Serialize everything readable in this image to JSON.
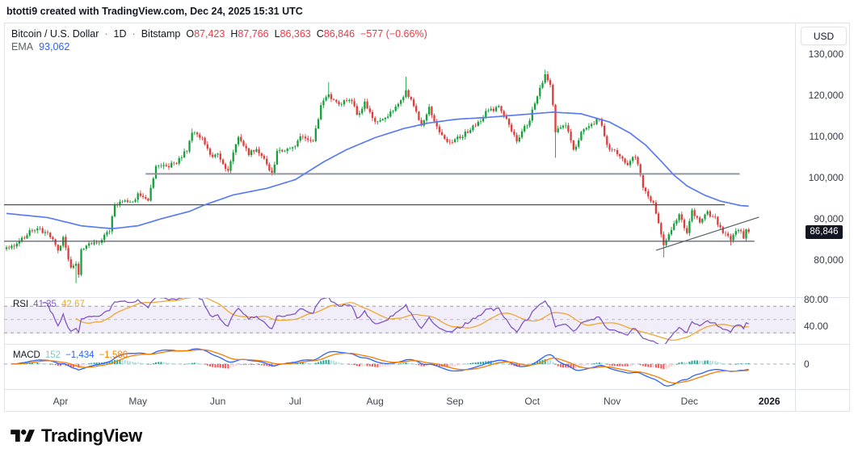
{
  "header": {
    "attribution": "btotti9 created with TradingView.com, Dec 24, 2025 15:31 UTC"
  },
  "symbol_legend": {
    "title": "Bitcoin / U.S. Dollar",
    "dot": "·",
    "interval": "1D",
    "exchange": "Bitstamp",
    "ohlc": [
      {
        "label": "O",
        "value": "87,423"
      },
      {
        "label": "H",
        "value": "87,766"
      },
      {
        "label": "L",
        "value": "86,363"
      },
      {
        "label": "C",
        "value": "86,846"
      }
    ],
    "change": "−577 (−0.66%)",
    "ema_label": "EMA",
    "ema_value": "93,062"
  },
  "price_axis": {
    "currency": "USD",
    "ticks": [
      {
        "price": 130000,
        "label": "130,000"
      },
      {
        "price": 120000,
        "label": "120,000"
      },
      {
        "price": 110000,
        "label": "110,000"
      },
      {
        "price": 100000,
        "label": "100,000"
      },
      {
        "price": 90000,
        "label": "90,000"
      },
      {
        "price": 80000,
        "label": "80,000"
      }
    ],
    "last_price": {
      "value": 86846,
      "label": "86,846"
    }
  },
  "rsi_pane": {
    "label": "RSI",
    "value": "41.35",
    "signal_value": "42.67",
    "scale_ticks": [
      {
        "v": 80,
        "label": "80.00"
      },
      {
        "v": 40,
        "label": "40.00"
      }
    ],
    "bands": {
      "upper": 70,
      "middle": 50,
      "lower": 30
    }
  },
  "macd_pane": {
    "label": "MACD",
    "hist_value": "152",
    "macd_value": "−1,434",
    "signal_value": "−1,586",
    "zero_label": "0"
  },
  "footer": {
    "brand": "TradingView"
  },
  "colors": {
    "up": "#16a03c",
    "down": "#e03c3c",
    "ema": "#5b7cf0",
    "hline_thick": "#9196a1",
    "hline_thin": "#4a4d55",
    "trendline": "#5a5e66",
    "rsi": "#7e57c2",
    "rsi_ma": "#f0a732",
    "rsi_band_fill": "rgba(126,87,194,0.10)",
    "band_line": "#9297a4",
    "macd_line": "#2962ff",
    "macd_signal": "#f57c00",
    "hist_up": "#26a69a",
    "hist_up_weak": "#b2dfdb",
    "hist_down": "#ff5252",
    "hist_down_weak": "#ffcdd2",
    "hist_value_color": "#80cbc4",
    "axis_text": "#363a45",
    "time_text": "#42464e",
    "year_text": "#131722",
    "border": "#e0e3eb",
    "badge_bg": "#131722",
    "badge_fg": "#ffffff",
    "legend_red": "#f23645"
  },
  "chart_data": {
    "type": "candlestick",
    "title": "Bitcoin / U.S. Dollar, 1D, Bitstamp",
    "start_date": "2025-03-11",
    "end_date": "2025-12-24",
    "days_total": 289,
    "ylim": [
      71000,
      137650
    ],
    "y_ticks": [
      80000,
      90000,
      100000,
      110000,
      120000,
      130000
    ],
    "last_candle": {
      "open": 87423,
      "high": 87766,
      "low": 86363,
      "close": 86846,
      "change": -577,
      "change_pct": -0.66
    },
    "close_waypoints": [
      [
        0,
        82800
      ],
      [
        4,
        84100
      ],
      [
        9,
        86800
      ],
      [
        13,
        87400
      ],
      [
        17,
        85700
      ],
      [
        20,
        82500
      ],
      [
        22,
        85100
      ],
      [
        25,
        78400
      ],
      [
        27,
        79200
      ],
      [
        28,
        76300
      ],
      [
        29,
        82600
      ],
      [
        32,
        83700
      ],
      [
        36,
        84000
      ],
      [
        40,
        87300
      ],
      [
        42,
        93400
      ],
      [
        45,
        94700
      ],
      [
        50,
        94200
      ],
      [
        51,
        96500
      ],
      [
        55,
        94000
      ],
      [
        58,
        103200
      ],
      [
        62,
        102800
      ],
      [
        66,
        103500
      ],
      [
        70,
        106800
      ],
      [
        72,
        111000
      ],
      [
        76,
        109400
      ],
      [
        80,
        104600
      ],
      [
        82,
        105600
      ],
      [
        86,
        101600
      ],
      [
        90,
        110200
      ],
      [
        94,
        105900
      ],
      [
        97,
        106800
      ],
      [
        101,
        103300
      ],
      [
        103,
        101000
      ],
      [
        105,
        106100
      ],
      [
        111,
        107100
      ],
      [
        114,
        109600
      ],
      [
        119,
        108900
      ],
      [
        122,
        117500
      ],
      [
        125,
        120000
      ],
      [
        129,
        118000
      ],
      [
        134,
        118800
      ],
      [
        136,
        115000
      ],
      [
        139,
        118100
      ],
      [
        143,
        113500
      ],
      [
        147,
        114100
      ],
      [
        153,
        118900
      ],
      [
        155,
        121000
      ],
      [
        158,
        117400
      ],
      [
        161,
        113000
      ],
      [
        164,
        116900
      ],
      [
        168,
        111300
      ],
      [
        171,
        108400
      ],
      [
        174,
        109200
      ],
      [
        178,
        110700
      ],
      [
        184,
        114000
      ],
      [
        186,
        115900
      ],
      [
        191,
        117100
      ],
      [
        195,
        112800
      ],
      [
        198,
        109100
      ],
      [
        203,
        114000
      ],
      [
        204,
        116800
      ],
      [
        208,
        123500
      ],
      [
        209,
        125100
      ],
      [
        211,
        123000
      ],
      [
        213,
        111500
      ],
      [
        217,
        113200
      ],
      [
        220,
        106500
      ],
      [
        223,
        110700
      ],
      [
        230,
        114500
      ],
      [
        233,
        107500
      ],
      [
        235,
        106900
      ],
      [
        241,
        103000
      ],
      [
        244,
        105400
      ],
      [
        247,
        98000
      ],
      [
        251,
        93500
      ],
      [
        255,
        83600
      ],
      [
        258,
        87800
      ],
      [
        261,
        91300
      ],
      [
        264,
        86700
      ],
      [
        266,
        92000
      ],
      [
        269,
        89500
      ],
      [
        272,
        91500
      ],
      [
        275,
        90000
      ],
      [
        278,
        86500
      ],
      [
        281,
        85000
      ],
      [
        284,
        87600
      ],
      [
        286,
        85500
      ],
      [
        287,
        87423
      ],
      [
        288,
        86846
      ]
    ],
    "extreme_wicks": [
      [
        27,
        "low",
        74400
      ],
      [
        72,
        "high",
        111900
      ],
      [
        125,
        "high",
        123200
      ],
      [
        155,
        "high",
        124500
      ],
      [
        209,
        "high",
        126200
      ],
      [
        213,
        "low",
        104800
      ],
      [
        255,
        "low",
        80600
      ],
      [
        281,
        "low",
        83500
      ]
    ],
    "ema_overlay": {
      "label": "EMA",
      "last_value": 93062,
      "points": [
        [
          0,
          91300
        ],
        [
          16,
          90300
        ],
        [
          29,
          88300
        ],
        [
          41,
          87600
        ],
        [
          51,
          88300
        ],
        [
          60,
          90000
        ],
        [
          71,
          91800
        ],
        [
          77,
          93400
        ],
        [
          88,
          95800
        ],
        [
          101,
          97400
        ],
        [
          112,
          99500
        ],
        [
          123,
          103800
        ],
        [
          132,
          106800
        ],
        [
          143,
          109700
        ],
        [
          154,
          111900
        ],
        [
          164,
          113300
        ],
        [
          175,
          114200
        ],
        [
          186,
          114600
        ],
        [
          198,
          115200
        ],
        [
          212,
          115900
        ],
        [
          223,
          115500
        ],
        [
          234,
          113500
        ],
        [
          242,
          110800
        ],
        [
          248,
          107900
        ],
        [
          254,
          104000
        ],
        [
          259,
          100600
        ],
        [
          264,
          98000
        ],
        [
          271,
          95700
        ],
        [
          277,
          94300
        ],
        [
          285,
          93200
        ],
        [
          288,
          93062
        ]
      ]
    },
    "drawings": {
      "hlines": [
        {
          "price": 100900,
          "d1": 54,
          "d2": 284.5,
          "width": 2,
          "style": "thick"
        },
        {
          "price": 93400,
          "d1": -1,
          "d2": 278.7,
          "width": 1.2,
          "style": "thin"
        },
        {
          "price": 84550,
          "d1": -1,
          "d2": 290.2,
          "width": 1.2,
          "style": "thin"
        }
      ],
      "trendline": {
        "d1": 252,
        "p1": 82350,
        "d2": 292,
        "p2": 90400,
        "width": 1.2
      }
    },
    "indicators": {
      "rsi": {
        "period": 14,
        "ma_period": 14,
        "last": 41.35,
        "ma_last": 42.67,
        "bands": [
          70,
          50,
          30
        ],
        "scale": [
          80,
          40
        ]
      },
      "macd": {
        "fast": 12,
        "slow": 26,
        "signal": 9,
        "last_hist": 152,
        "last_macd": -1434,
        "last_signal": -1586
      }
    },
    "time_ticks": [
      {
        "label": "Apr",
        "day": 21
      },
      {
        "label": "May",
        "day": 51
      },
      {
        "label": "Jun",
        "day": 82
      },
      {
        "label": "Jul",
        "day": 112
      },
      {
        "label": "Aug",
        "day": 143
      },
      {
        "label": "Sep",
        "day": 174
      },
      {
        "label": "Oct",
        "day": 204
      },
      {
        "label": "Nov",
        "day": 235
      },
      {
        "label": "Dec",
        "day": 265
      },
      {
        "label": "2026",
        "day": 296,
        "is_year": true
      }
    ]
  }
}
